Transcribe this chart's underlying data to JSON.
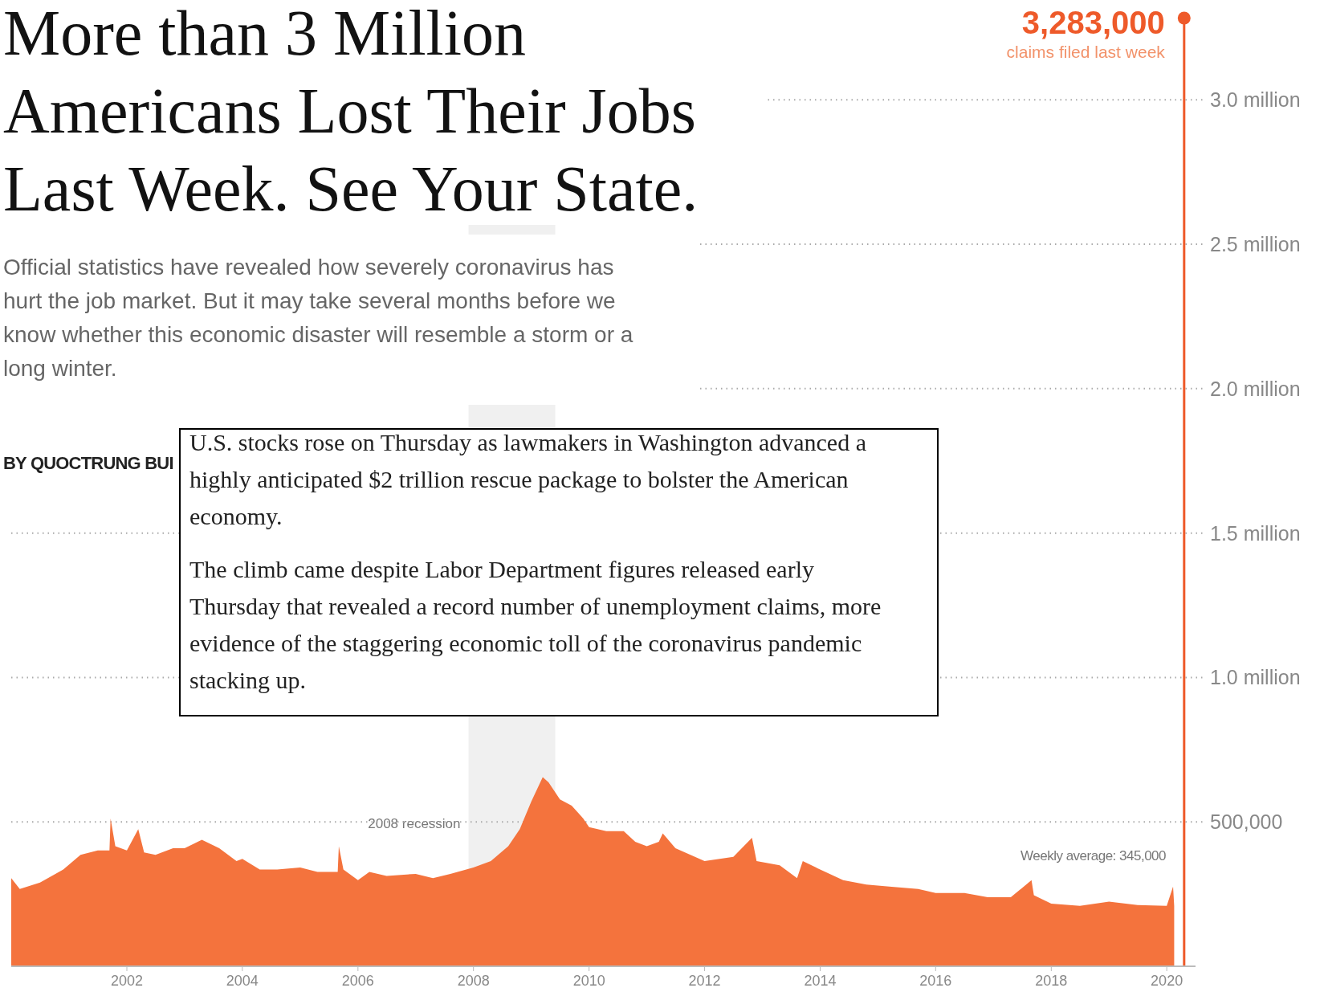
{
  "chart_data": {
    "type": "area",
    "title": "More than 3 Million Americans Lost Their Jobs Last Week. See Your State.",
    "subtitle": "Official statistics have revealed how severely coronavirus has hurt the job market. But it may take several months before we know whether this economic disaster will resemble a storm or a long winter.",
    "annotations": [
      "BY QUOCTRUNG BUI",
      "U.S. stocks rose on Thursday as lawmakers in Washington advanced a highly anticipated $2 trillion rescue package to bolster the American economy.",
      "The climb came despite Labor Department figures released early Thursday that revealed a record number of unemployment claims, more evidence of the staggering economic toll of the coronavirus pandemic stacking up.",
      "Weekly average: 345,000",
      {
        "text": "claims filed last week",
        "x": "2020-04-20",
        "y": 3283000
      }
    ],
    "xlim": [
      "2000-01-01",
      "2020-07-01"
    ],
    "xticks": [
      "2002",
      "2004",
      "2006",
      "2008",
      "2010",
      "2012",
      "2014",
      "2016",
      "2018",
      "2020"
    ],
    "ylim": [
      0,
      3340000
    ],
    "yticks": [
      {
        "value": 500000,
        "label": "500,000"
      },
      {
        "value": 1000000,
        "label": "1.0 million"
      },
      {
        "value": 1500000,
        "label": "1.5 million"
      },
      {
        "value": 2000000,
        "label": "2.0 million"
      },
      {
        "value": 2500000,
        "label": "2.5 million"
      },
      {
        "value": 3000000,
        "label": "3.0 million"
      }
    ],
    "grid": "y",
    "bands": [
      {
        "axis": "x",
        "from": "2007-12-01",
        "to": "2009-06-01",
        "label": "2008 recession",
        "color": "#f0f0f0"
      }
    ],
    "series": [
      {
        "color": "#f4733d",
        "x": [
          "2000-01-01",
          "2000-02-24",
          "2000-07-01",
          "2000-11-25",
          "2001-03-14",
          "2001-07-01",
          "2001-09-13",
          "2001-09-20",
          "2001-10-20",
          "2002-01-01",
          "2002-03-14",
          "2002-04-20",
          "2002-07-01",
          "2002-10-20",
          "2003-01-01",
          "2003-04-20",
          "2003-08-08",
          "2003-11-25",
          "2004-01-01",
          "2004-04-20",
          "2004-08-08",
          "2005-01-01",
          "2005-04-20",
          "2005-08-26",
          "2005-09-02",
          "2005-10-01",
          "2006-01-01",
          "2006-03-14",
          "2006-07-01",
          "2007-01-01",
          "2007-04-20",
          "2007-08-08",
          "2008-01-01",
          "2008-04-20",
          "2008-08-08",
          "2008-10-20",
          "2009-01-01",
          "2009-03-14",
          "2009-04-20",
          "2009-07-01",
          "2009-09-13",
          "2009-11-25",
          "2010-01-01",
          "2010-04-20",
          "2010-08-08",
          "2010-10-20",
          "2011-01-01",
          "2011-03-18",
          "2011-04-12",
          "2011-07-01",
          "2012-01-01",
          "2012-07-01",
          "2012-10-27",
          "2012-11-25",
          "2013-04-20",
          "2013-08-08",
          "2013-09-13",
          "2014-01-01",
          "2014-05-26",
          "2014-10-20",
          "2015-03-14",
          "2015-09-13",
          "2016-01-01",
          "2016-07-01",
          "2016-11-25",
          "2017-04-20",
          "2017-08-29",
          "2017-09-13",
          "2018-01-01",
          "2018-07-01",
          "2019-01-01",
          "2019-07-01",
          "2020-01-01",
          "2020-02-10",
          "2020-02-17"
        ],
        "values": [
          305000,
          268000,
          290000,
          335000,
          386000,
          401000,
          401000,
          512000,
          416000,
          401000,
          475000,
          394000,
          386000,
          409000,
          409000,
          438000,
          409000,
          364000,
          372000,
          335000,
          335000,
          342000,
          327000,
          327000,
          416000,
          335000,
          298000,
          327000,
          313000,
          320000,
          305000,
          320000,
          342000,
          364000,
          416000,
          475000,
          571000,
          655000,
          637000,
          578000,
          556000,
          512000,
          482000,
          468000,
          468000,
          431000,
          416000,
          431000,
          460000,
          409000,
          364000,
          379000,
          445000,
          364000,
          350000,
          305000,
          364000,
          335000,
          298000,
          283000,
          276000,
          268000,
          254000,
          254000,
          239000,
          239000,
          298000,
          246000,
          217000,
          209000,
          224000,
          212000,
          209000,
          276000,
          209000
        ]
      },
      {
        "type": "lollipop",
        "color": "#ee5a2a",
        "x": [
          "2020-04-20"
        ],
        "values": [
          3283000
        ],
        "value_labels": [
          "3,283,000"
        ]
      }
    ]
  }
}
